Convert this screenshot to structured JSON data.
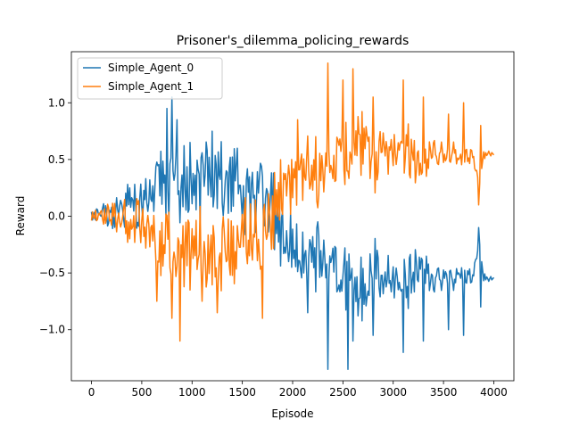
{
  "chart_data": {
    "type": "line",
    "title": "Prisoner's_dilemma_policing_rewards",
    "xlabel": "Episode",
    "ylabel": "Reward",
    "xlim": [
      -200,
      4200
    ],
    "ylim": [
      -1.45,
      1.45
    ],
    "xticks": [
      0,
      500,
      1000,
      1500,
      2000,
      2500,
      3000,
      3500,
      4000
    ],
    "yticks": [
      -1.0,
      -0.5,
      0.0,
      0.5,
      1.0
    ],
    "ytick_labels": [
      "−1.0",
      "−0.5",
      "0.0",
      "0.5",
      "1.0"
    ],
    "grid": false,
    "legend_position": "top-left",
    "x_start": 0,
    "x_step": 10,
    "series": [
      {
        "name": "Simple_Agent_0",
        "color": "#1f77b4",
        "anchors": [
          [
            0,
            0.0
          ],
          [
            100,
            0.05
          ],
          [
            200,
            0.0
          ],
          [
            300,
            0.05
          ],
          [
            400,
            0.1
          ],
          [
            500,
            0.15
          ],
          [
            600,
            0.2
          ],
          [
            700,
            0.25
          ],
          [
            800,
            0.3
          ],
          [
            900,
            0.3
          ],
          [
            1000,
            0.25
          ],
          [
            1100,
            0.3
          ],
          [
            1200,
            0.3
          ],
          [
            1300,
            0.3
          ],
          [
            1400,
            0.3
          ],
          [
            1500,
            0.25
          ],
          [
            1600,
            0.2
          ],
          [
            1700,
            0.1
          ],
          [
            1800,
            0.0
          ],
          [
            1900,
            -0.15
          ],
          [
            2000,
            -0.25
          ],
          [
            2100,
            -0.3
          ],
          [
            2200,
            -0.35
          ],
          [
            2300,
            -0.5
          ],
          [
            2400,
            -0.45
          ],
          [
            2500,
            -0.5
          ],
          [
            2600,
            -0.5
          ],
          [
            2700,
            -0.6
          ],
          [
            2800,
            -0.5
          ],
          [
            2900,
            -0.5
          ],
          [
            3000,
            -0.6
          ],
          [
            3100,
            -0.6
          ],
          [
            3200,
            -0.55
          ],
          [
            3300,
            -0.5
          ],
          [
            3400,
            -0.55
          ],
          [
            3500,
            -0.55
          ],
          [
            3600,
            -0.55
          ],
          [
            3700,
            -0.5
          ],
          [
            3800,
            -0.55
          ],
          [
            3850,
            -0.2
          ],
          [
            3900,
            -0.55
          ],
          [
            4000,
            -0.55
          ]
        ],
        "amplitude": [
          [
            0,
            0.05
          ],
          [
            100,
            0.12
          ],
          [
            300,
            0.2
          ],
          [
            500,
            0.35
          ],
          [
            700,
            0.4
          ],
          [
            1000,
            0.45
          ],
          [
            1500,
            0.45
          ],
          [
            2000,
            0.4
          ],
          [
            2400,
            0.4
          ],
          [
            2700,
            0.35
          ],
          [
            3000,
            0.3
          ],
          [
            3300,
            0.25
          ],
          [
            3500,
            0.15
          ],
          [
            3700,
            0.12
          ],
          [
            3900,
            0.06
          ],
          [
            4000,
            0.01
          ]
        ],
        "features": [
          [
            750,
            0.95
          ],
          [
            800,
            1.05
          ],
          [
            850,
            0.85
          ],
          [
            1200,
            0.75
          ],
          [
            1450,
            0.6
          ],
          [
            1700,
            0.35
          ],
          [
            2150,
            -0.85
          ],
          [
            2350,
            -1.35
          ],
          [
            2550,
            -1.35
          ],
          [
            2600,
            -1.1
          ],
          [
            2800,
            -1.05
          ],
          [
            3100,
            -1.2
          ],
          [
            3300,
            -1.1
          ],
          [
            3550,
            -1.0
          ],
          [
            3700,
            -1.05
          ],
          [
            3850,
            -0.1
          ],
          [
            3870,
            -0.8
          ]
        ]
      },
      {
        "name": "Simple_Agent_1",
        "color": "#ff7f0e",
        "anchors": [
          [
            0,
            0.0
          ],
          [
            100,
            0.0
          ],
          [
            200,
            0.0
          ],
          [
            300,
            0.0
          ],
          [
            400,
            -0.05
          ],
          [
            500,
            -0.1
          ],
          [
            600,
            -0.15
          ],
          [
            700,
            -0.2
          ],
          [
            800,
            -0.3
          ],
          [
            900,
            -0.3
          ],
          [
            1000,
            -0.25
          ],
          [
            1100,
            -0.25
          ],
          [
            1200,
            -0.3
          ],
          [
            1300,
            -0.3
          ],
          [
            1400,
            -0.3
          ],
          [
            1500,
            -0.25
          ],
          [
            1600,
            -0.2
          ],
          [
            1700,
            -0.1
          ],
          [
            1800,
            0.1
          ],
          [
            1900,
            0.2
          ],
          [
            2000,
            0.3
          ],
          [
            2100,
            0.3
          ],
          [
            2200,
            0.4
          ],
          [
            2300,
            0.5
          ],
          [
            2400,
            0.5
          ],
          [
            2500,
            0.5
          ],
          [
            2600,
            0.5
          ],
          [
            2700,
            0.6
          ],
          [
            2800,
            0.5
          ],
          [
            2900,
            0.55
          ],
          [
            3000,
            0.6
          ],
          [
            3100,
            0.6
          ],
          [
            3200,
            0.55
          ],
          [
            3300,
            0.5
          ],
          [
            3400,
            0.55
          ],
          [
            3500,
            0.55
          ],
          [
            3600,
            0.55
          ],
          [
            3700,
            0.5
          ],
          [
            3800,
            0.55
          ],
          [
            3850,
            0.25
          ],
          [
            3900,
            0.55
          ],
          [
            4000,
            0.55
          ]
        ],
        "amplitude": [
          [
            0,
            0.05
          ],
          [
            100,
            0.12
          ],
          [
            300,
            0.2
          ],
          [
            500,
            0.35
          ],
          [
            700,
            0.4
          ],
          [
            1000,
            0.45
          ],
          [
            1500,
            0.45
          ],
          [
            2000,
            0.4
          ],
          [
            2400,
            0.4
          ],
          [
            2700,
            0.35
          ],
          [
            3000,
            0.3
          ],
          [
            3300,
            0.25
          ],
          [
            3500,
            0.15
          ],
          [
            3700,
            0.12
          ],
          [
            3900,
            0.06
          ],
          [
            4000,
            0.01
          ]
        ],
        "features": [
          [
            650,
            -0.75
          ],
          [
            800,
            -0.9
          ],
          [
            880,
            -1.1
          ],
          [
            1100,
            -0.75
          ],
          [
            1250,
            -0.85
          ],
          [
            1700,
            -0.9
          ],
          [
            2050,
            0.85
          ],
          [
            2350,
            1.35
          ],
          [
            2500,
            1.2
          ],
          [
            2600,
            1.3
          ],
          [
            2800,
            1.05
          ],
          [
            3100,
            1.2
          ],
          [
            3300,
            1.05
          ],
          [
            3550,
            0.9
          ],
          [
            3700,
            1.0
          ],
          [
            3850,
            0.1
          ],
          [
            3870,
            0.8
          ]
        ]
      }
    ]
  }
}
